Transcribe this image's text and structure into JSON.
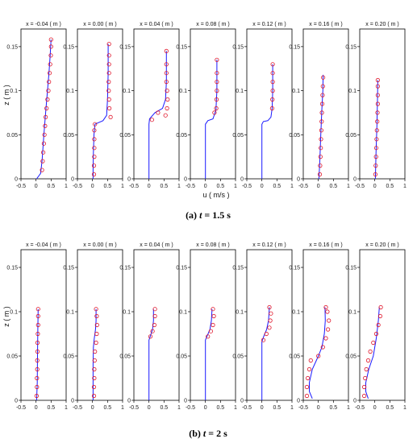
{
  "figure": {
    "xlabel": "u ( m/s )",
    "ylabel": "z ( m )"
  },
  "colors": {
    "model": "#1a1aff",
    "experiment": "#e0162b",
    "axes": "#000000"
  },
  "chart_data": [
    {
      "type": "line",
      "caption_prefix": "(a) ",
      "caption_var": "t",
      "caption_value": " = 1.5 s",
      "xlim": [
        -0.5,
        1
      ],
      "ylim": [
        0,
        0.17
      ],
      "xticks": [
        "-0.5",
        "0",
        "0.5",
        "1"
      ],
      "yticks": [
        "0",
        "0.05",
        "0.1",
        "0.15"
      ],
      "panels": [
        {
          "title": "x = -0.04 ( m )",
          "model": [
            [
              0.02,
              0
            ],
            [
              0.15,
              0.006
            ],
            [
              0.2,
              0.02
            ],
            [
              0.26,
              0.05
            ],
            [
              0.33,
              0.08
            ],
            [
              0.38,
              0.1
            ],
            [
              0.43,
              0.12
            ],
            [
              0.47,
              0.14
            ],
            [
              0.5,
              0.158
            ]
          ],
          "experiment": [
            [
              0.2,
              0.01
            ],
            [
              0.22,
              0.02
            ],
            [
              0.24,
              0.03
            ],
            [
              0.26,
              0.04
            ],
            [
              0.28,
              0.05
            ],
            [
              0.3,
              0.06
            ],
            [
              0.32,
              0.07
            ],
            [
              0.35,
              0.08
            ],
            [
              0.38,
              0.09
            ],
            [
              0.41,
              0.1
            ],
            [
              0.43,
              0.11
            ],
            [
              0.45,
              0.12
            ],
            [
              0.47,
              0.13
            ],
            [
              0.49,
              0.14
            ],
            [
              0.5,
              0.15
            ],
            [
              0.5,
              0.158
            ]
          ]
        },
        {
          "title": "x = 0.00 ( m )",
          "model": [
            [
              0.02,
              0
            ],
            [
              0.02,
              0.01
            ],
            [
              0.03,
              0.03
            ],
            [
              0.05,
              0.05
            ],
            [
              0.08,
              0.062
            ],
            [
              0.35,
              0.066
            ],
            [
              0.47,
              0.072
            ],
            [
              0.5,
              0.09
            ],
            [
              0.52,
              0.12
            ],
            [
              0.52,
              0.153
            ]
          ],
          "experiment": [
            [
              0.05,
              0.005
            ],
            [
              0.05,
              0.015
            ],
            [
              0.06,
              0.025
            ],
            [
              0.06,
              0.035
            ],
            [
              0.06,
              0.045
            ],
            [
              0.06,
              0.055
            ],
            [
              0.08,
              0.062
            ],
            [
              0.6,
              0.07
            ],
            [
              0.56,
              0.08
            ],
            [
              0.55,
              0.09
            ],
            [
              0.54,
              0.1
            ],
            [
              0.54,
              0.11
            ],
            [
              0.55,
              0.12
            ],
            [
              0.55,
              0.13
            ],
            [
              0.55,
              0.14
            ],
            [
              0.55,
              0.153
            ]
          ]
        },
        {
          "title": "x = 0.04 ( m )",
          "model": [
            [
              0,
              0
            ],
            [
              0,
              0.062
            ],
            [
              0.02,
              0.068
            ],
            [
              0.2,
              0.075
            ],
            [
              0.45,
              0.08
            ],
            [
              0.55,
              0.09
            ],
            [
              0.58,
              0.11
            ],
            [
              0.58,
              0.145
            ]
          ],
          "experiment": [
            [
              0.1,
              0.067
            ],
            [
              0.3,
              0.075
            ],
            [
              0.55,
              0.072
            ],
            [
              0.6,
              0.08
            ],
            [
              0.62,
              0.09
            ],
            [
              0.6,
              0.1
            ],
            [
              0.58,
              0.11
            ],
            [
              0.58,
              0.12
            ],
            [
              0.58,
              0.13
            ],
            [
              0.58,
              0.145
            ]
          ]
        },
        {
          "title": "x = 0.08 ( m )",
          "model": [
            [
              0,
              0
            ],
            [
              0,
              0.062
            ],
            [
              0.08,
              0.066
            ],
            [
              0.25,
              0.068
            ],
            [
              0.35,
              0.078
            ],
            [
              0.38,
              0.1
            ],
            [
              0.38,
              0.135
            ]
          ],
          "experiment": [
            [
              0.3,
              0.075
            ],
            [
              0.36,
              0.08
            ],
            [
              0.37,
              0.09
            ],
            [
              0.38,
              0.1
            ],
            [
              0.38,
              0.11
            ],
            [
              0.38,
              0.12
            ],
            [
              0.38,
              0.135
            ]
          ]
        },
        {
          "title": "x = 0.12 ( m )",
          "model": [
            [
              0,
              0
            ],
            [
              0,
              0.062
            ],
            [
              0.05,
              0.065
            ],
            [
              0.2,
              0.066
            ],
            [
              0.3,
              0.07
            ],
            [
              0.34,
              0.08
            ],
            [
              0.36,
              0.1
            ],
            [
              0.36,
              0.13
            ]
          ],
          "experiment": [
            [
              0.34,
              0.08
            ],
            [
              0.35,
              0.09
            ],
            [
              0.36,
              0.1
            ],
            [
              0.36,
              0.11
            ],
            [
              0.36,
              0.12
            ],
            [
              0.36,
              0.13
            ]
          ]
        },
        {
          "title": "x = 0.16 ( m )",
          "model": [
            [
              0.02,
              0
            ],
            [
              0.05,
              0.02
            ],
            [
              0.08,
              0.05
            ],
            [
              0.12,
              0.08
            ],
            [
              0.15,
              0.1
            ],
            [
              0.16,
              0.118
            ]
          ],
          "experiment": [
            [
              0.05,
              0.005
            ],
            [
              0.06,
              0.015
            ],
            [
              0.07,
              0.025
            ],
            [
              0.08,
              0.035
            ],
            [
              0.09,
              0.045
            ],
            [
              0.1,
              0.055
            ],
            [
              0.11,
              0.065
            ],
            [
              0.12,
              0.075
            ],
            [
              0.13,
              0.085
            ],
            [
              0.14,
              0.095
            ],
            [
              0.15,
              0.105
            ],
            [
              0.16,
              0.115
            ]
          ]
        },
        {
          "title": "x = 0.20 ( m )",
          "model": [
            [
              0.02,
              0
            ],
            [
              0.04,
              0.03
            ],
            [
              0.07,
              0.06
            ],
            [
              0.09,
              0.09
            ],
            [
              0.1,
              0.112
            ]
          ],
          "experiment": [
            [
              0.02,
              0.005
            ],
            [
              0.03,
              0.015
            ],
            [
              0.04,
              0.025
            ],
            [
              0.05,
              0.035
            ],
            [
              0.06,
              0.045
            ],
            [
              0.07,
              0.055
            ],
            [
              0.08,
              0.065
            ],
            [
              0.09,
              0.075
            ],
            [
              0.1,
              0.085
            ],
            [
              0.1,
              0.095
            ],
            [
              0.1,
              0.105
            ],
            [
              0.1,
              0.112
            ]
          ]
        }
      ]
    },
    {
      "type": "line",
      "caption_prefix": "(b) ",
      "caption_var": "t",
      "caption_value": " = 2 s",
      "xlim": [
        -0.5,
        1
      ],
      "ylim": [
        0,
        0.17
      ],
      "xticks": [
        "-0.5",
        "0",
        "0.5",
        "1"
      ],
      "yticks": [
        "0",
        "0.05",
        "0.1",
        "0.15"
      ],
      "panels": [
        {
          "title": "x = -0.04 ( m )",
          "model": [
            [
              0.02,
              0
            ],
            [
              0.04,
              0.02
            ],
            [
              0.05,
              0.05
            ],
            [
              0.06,
              0.08
            ],
            [
              0.07,
              0.103
            ]
          ],
          "experiment": [
            [
              0.02,
              0.005
            ],
            [
              0.03,
              0.015
            ],
            [
              0.03,
              0.025
            ],
            [
              0.04,
              0.035
            ],
            [
              0.04,
              0.045
            ],
            [
              0.05,
              0.055
            ],
            [
              0.05,
              0.065
            ],
            [
              0.06,
              0.075
            ],
            [
              0.07,
              0.085
            ],
            [
              0.07,
              0.095
            ],
            [
              0.07,
              0.103
            ]
          ]
        },
        {
          "title": "x = 0.00 ( m )",
          "model": [
            [
              0.02,
              0
            ],
            [
              0.02,
              0.04
            ],
            [
              0.03,
              0.06
            ],
            [
              0.06,
              0.07
            ],
            [
              0.1,
              0.08
            ],
            [
              0.12,
              0.09
            ],
            [
              0.12,
              0.103
            ]
          ],
          "experiment": [
            [
              0.05,
              0.005
            ],
            [
              0.05,
              0.015
            ],
            [
              0.06,
              0.025
            ],
            [
              0.06,
              0.035
            ],
            [
              0.07,
              0.045
            ],
            [
              0.08,
              0.055
            ],
            [
              0.12,
              0.065
            ],
            [
              0.14,
              0.075
            ],
            [
              0.15,
              0.085
            ],
            [
              0.14,
              0.095
            ],
            [
              0.12,
              0.103
            ]
          ]
        },
        {
          "title": "x = 0.04 ( m )",
          "model": [
            [
              0,
              0
            ],
            [
              0,
              0.068
            ],
            [
              0.04,
              0.072
            ],
            [
              0.12,
              0.08
            ],
            [
              0.15,
              0.09
            ],
            [
              0.15,
              0.103
            ]
          ],
          "experiment": [
            [
              0.05,
              0.072
            ],
            [
              0.12,
              0.078
            ],
            [
              0.18,
              0.085
            ],
            [
              0.2,
              0.095
            ],
            [
              0.2,
              0.103
            ]
          ]
        },
        {
          "title": "x = 0.08 ( m )",
          "model": [
            [
              0,
              0
            ],
            [
              0,
              0.068
            ],
            [
              0.05,
              0.072
            ],
            [
              0.15,
              0.08
            ],
            [
              0.2,
              0.09
            ],
            [
              0.22,
              0.103
            ]
          ],
          "experiment": [
            [
              0.08,
              0.072
            ],
            [
              0.18,
              0.078
            ],
            [
              0.25,
              0.085
            ],
            [
              0.28,
              0.095
            ],
            [
              0.25,
              0.103
            ]
          ]
        },
        {
          "title": "x = 0.12 ( m )",
          "model": [
            [
              0,
              0
            ],
            [
              0,
              0.066
            ],
            [
              0.06,
              0.072
            ],
            [
              0.16,
              0.08
            ],
            [
              0.22,
              0.09
            ],
            [
              0.25,
              0.105
            ]
          ],
          "experiment": [
            [
              0.05,
              0.068
            ],
            [
              0.15,
              0.075
            ],
            [
              0.25,
              0.082
            ],
            [
              0.28,
              0.09
            ],
            [
              0.3,
              0.098
            ],
            [
              0.25,
              0.105
            ]
          ]
        },
        {
          "title": "x = 0.16 ( m )",
          "model": [
            [
              -0.2,
              0.002
            ],
            [
              -0.3,
              0.01
            ],
            [
              -0.3,
              0.02
            ],
            [
              -0.2,
              0.035
            ],
            [
              0,
              0.05
            ],
            [
              0.12,
              0.06
            ],
            [
              0.2,
              0.075
            ],
            [
              0.23,
              0.09
            ],
            [
              0.22,
              0.105
            ]
          ],
          "experiment": [
            [
              -0.38,
              0.005
            ],
            [
              -0.38,
              0.015
            ],
            [
              -0.35,
              0.025
            ],
            [
              -0.3,
              0.035
            ],
            [
              -0.25,
              0.045
            ],
            [
              0,
              0.05
            ],
            [
              0.15,
              0.06
            ],
            [
              0.25,
              0.07
            ],
            [
              0.32,
              0.08
            ],
            [
              0.35,
              0.09
            ],
            [
              0.3,
              0.1
            ],
            [
              0.25,
              0.105
            ]
          ]
        },
        {
          "title": "x = 0.20 ( m )",
          "model": [
            [
              -0.22,
              0.002
            ],
            [
              -0.3,
              0.01
            ],
            [
              -0.3,
              0.02
            ],
            [
              -0.2,
              0.035
            ],
            [
              -0.05,
              0.05
            ],
            [
              0.05,
              0.07
            ],
            [
              0.12,
              0.09
            ],
            [
              0.15,
              0.105
            ]
          ],
          "experiment": [
            [
              -0.35,
              0.005
            ],
            [
              -0.35,
              0.015
            ],
            [
              -0.32,
              0.025
            ],
            [
              -0.28,
              0.035
            ],
            [
              -0.22,
              0.045
            ],
            [
              -0.15,
              0.055
            ],
            [
              -0.05,
              0.065
            ],
            [
              0.05,
              0.075
            ],
            [
              0.12,
              0.085
            ],
            [
              0.18,
              0.095
            ],
            [
              0.2,
              0.105
            ]
          ]
        }
      ]
    }
  ]
}
